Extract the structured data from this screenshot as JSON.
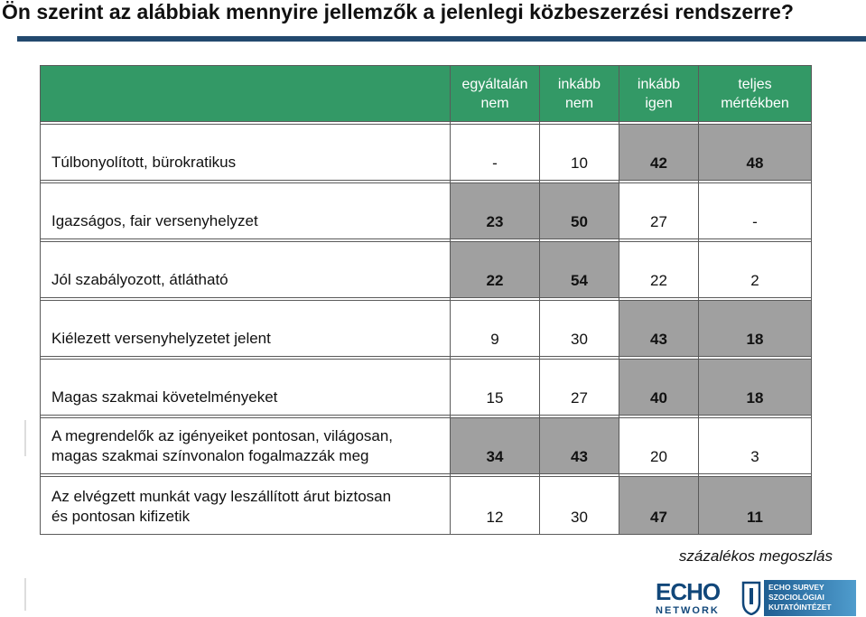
{
  "title": "Ön szerint az alábbiak mennyire jellemzők a jelenlegi közbeszerzési rendszerre?",
  "footnote": "százalékos megoszlás",
  "logo": {
    "brand_top": "ECHO",
    "brand_bottom": "NETWORK",
    "badge_lines": [
      "ECHO SURVEY",
      "SZOCIOLÓGIAI",
      "KUTATÓINTÉZET"
    ]
  },
  "colors": {
    "header_bg": "#339966",
    "highlight_bg": "#a0a0a0",
    "title_rule": "#22496e"
  },
  "chart_data": {
    "type": "table",
    "columns": [
      [
        "egyáltalán",
        "nem"
      ],
      [
        "inkább",
        "nem"
      ],
      [
        "inkább",
        "igen"
      ],
      [
        "teljes",
        "mértékben"
      ]
    ],
    "rows": [
      {
        "label": [
          "Túlbonyolított, bürokratikus"
        ],
        "values": [
          "-",
          "10",
          "42",
          "48"
        ],
        "highlight": [
          false,
          false,
          true,
          true
        ]
      },
      {
        "label": [
          "Igazságos, fair versenyhelyzet"
        ],
        "values": [
          "23",
          "50",
          "27",
          "-"
        ],
        "highlight": [
          true,
          true,
          false,
          false
        ]
      },
      {
        "label": [
          "Jól szabályozott, átlátható"
        ],
        "values": [
          "22",
          "54",
          "22",
          "2"
        ],
        "highlight": [
          true,
          true,
          false,
          false
        ]
      },
      {
        "label": [
          "Kiélezett versenyhelyzetet jelent"
        ],
        "values": [
          "9",
          "30",
          "43",
          "18"
        ],
        "highlight": [
          false,
          false,
          true,
          true
        ]
      },
      {
        "label": [
          "Magas szakmai követelményeket"
        ],
        "values": [
          "15",
          "27",
          "40",
          "18"
        ],
        "highlight": [
          false,
          false,
          true,
          true
        ]
      },
      {
        "label": [
          "A megrendelők az igényeiket pontosan, világosan,",
          "magas szakmai színvonalon fogalmazzák meg"
        ],
        "values": [
          "34",
          "43",
          "20",
          "3"
        ],
        "highlight": [
          true,
          true,
          false,
          false
        ]
      },
      {
        "label": [
          "Az elvégzett munkát vagy leszállított árut biztosan",
          "és pontosan kifizetik"
        ],
        "values": [
          "12",
          "30",
          "47",
          "11"
        ],
        "highlight": [
          false,
          false,
          true,
          true
        ]
      }
    ]
  }
}
